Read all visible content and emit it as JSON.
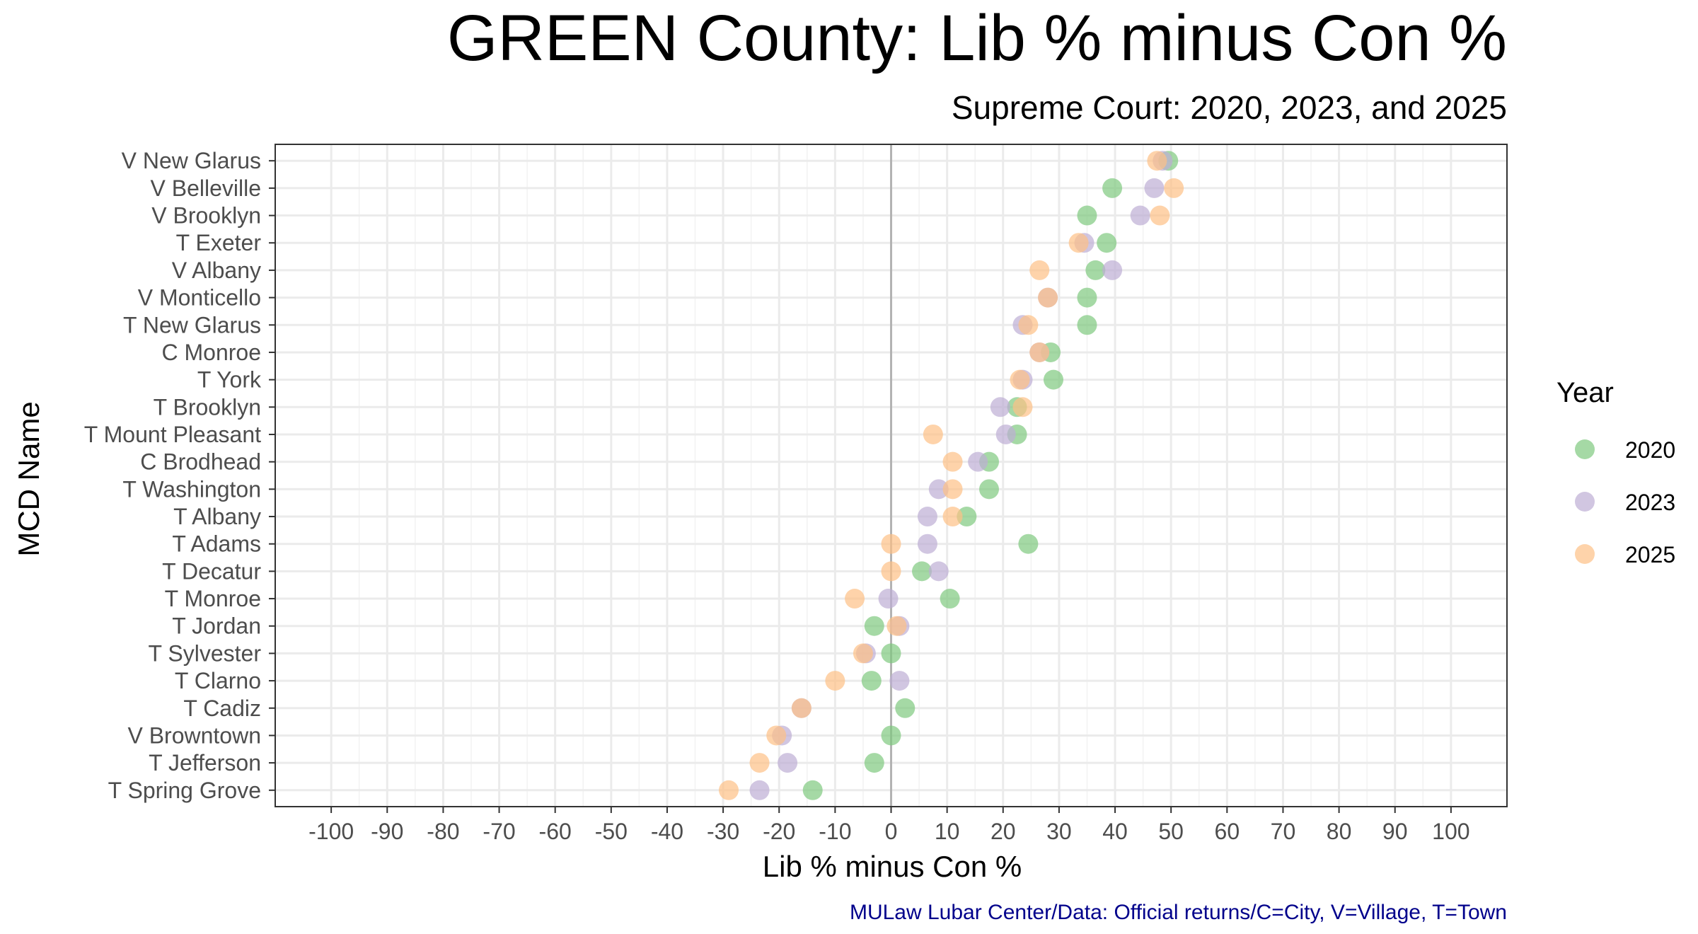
{
  "chart_data": {
    "type": "scatter",
    "title": "GREEN County: Lib % minus Con %",
    "subtitle": "Supreme Court: 2020, 2023, and 2025",
    "xlabel": "Lib % minus Con %",
    "ylabel": "MCD Name",
    "xlim": [
      -110,
      110
    ],
    "x_ticks": [
      "-100",
      "-90",
      "-80",
      "-70",
      "-60",
      "-50",
      "-40",
      "-30",
      "-20",
      "-10",
      "0",
      "10",
      "20",
      "30",
      "40",
      "50",
      "60",
      "70",
      "80",
      "90",
      "100"
    ],
    "x_tick_values": [
      -100,
      -90,
      -80,
      -70,
      -60,
      -50,
      -40,
      -30,
      -20,
      -10,
      0,
      10,
      20,
      30,
      40,
      50,
      60,
      70,
      80,
      90,
      100
    ],
    "grid": true,
    "reference_line_x": 0,
    "legend_title": "Year",
    "legend_position": "right",
    "caption": "MULaw Lubar Center/Data: Official returns/C=City, V=Village, T=Town",
    "categories": [
      "V New Glarus",
      "V Belleville",
      "V Brooklyn",
      "T Exeter",
      "V Albany",
      "V Monticello",
      "T New Glarus",
      "C Monroe",
      "T York",
      "T Brooklyn",
      "T Mount Pleasant",
      "C Brodhead",
      "T Washington",
      "T Albany",
      "T Adams",
      "T Decatur",
      "T Monroe",
      "T Jordan",
      "T Sylvester",
      "T Clarno",
      "T Cadiz",
      "V Browntown",
      "T Jefferson",
      "T Spring Grove"
    ],
    "series": [
      {
        "name": "2020",
        "color": "#7fc97f",
        "values": [
          49.5,
          39.5,
          35,
          38.5,
          36.5,
          35,
          35,
          28.5,
          29,
          22.5,
          22.5,
          17.5,
          17.5,
          13.5,
          24.5,
          5.5,
          10.5,
          -3,
          0,
          -3.5,
          2.5,
          0,
          -3,
          -14
        ]
      },
      {
        "name": "2023",
        "color": "#beaed4",
        "values": [
          48.5,
          47,
          44.5,
          34.5,
          39.5,
          28,
          23.5,
          26.5,
          23.5,
          19.5,
          20.5,
          15.5,
          8.5,
          6.5,
          6.5,
          8.5,
          -0.5,
          1.5,
          -4.5,
          1.5,
          -16,
          -19.5,
          -18.5,
          -23.5
        ]
      },
      {
        "name": "2025",
        "color": "#fdc086",
        "values": [
          47.5,
          50.5,
          48,
          33.5,
          26.5,
          28,
          24.5,
          26.5,
          23,
          23.5,
          7.5,
          11,
          11,
          11,
          0,
          0,
          -6.5,
          1,
          -5,
          -10,
          -16,
          -20.5,
          -23.5,
          -29
        ]
      }
    ]
  }
}
